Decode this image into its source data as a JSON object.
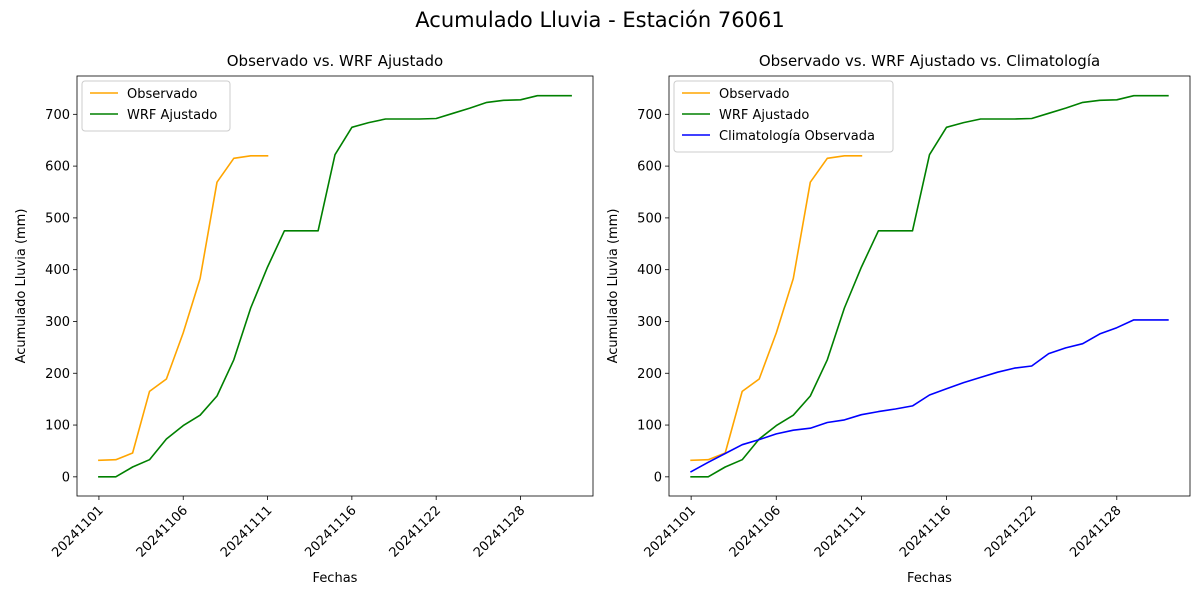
{
  "figure": {
    "title": "Acumulado Lluvia - Estación 76061"
  },
  "chart_data": [
    {
      "type": "line",
      "title": "Observado vs. WRF Ajustado",
      "xlabel": "Fechas",
      "ylabel": "Acumulado Lluvia (mm)",
      "x_ticks": [
        "20241101",
        "20241106",
        "20241111",
        "20241116",
        "20241122",
        "20241128"
      ],
      "x_tick_days": [
        1,
        6,
        11,
        16,
        21,
        26
      ],
      "y_ticks": [
        0,
        100,
        200,
        300,
        400,
        500,
        600,
        700
      ],
      "ylim": [
        -37,
        774
      ],
      "xlim_days": [
        -0.3,
        30.3
      ],
      "legend_position": "upper-left",
      "grid": false,
      "series": [
        {
          "name": "Observado",
          "color": "#ffa500",
          "x_days": [
            1,
            2,
            3,
            4,
            5,
            6,
            7,
            8,
            9,
            10,
            11
          ],
          "values": [
            32,
            33,
            46,
            165,
            189,
            278,
            383,
            569,
            615,
            620,
            620
          ]
        },
        {
          "name": "WRF Ajustado",
          "color": "#008000",
          "x_days": [
            1,
            2,
            3,
            4,
            5,
            6,
            7,
            8,
            9,
            10,
            11,
            12,
            13,
            14,
            15,
            16,
            17,
            18,
            19,
            20,
            21,
            22,
            23,
            24,
            25,
            26,
            27,
            28,
            29
          ],
          "values": [
            0,
            0,
            19,
            33,
            73,
            99,
            119,
            156,
            226,
            326,
            405,
            475,
            475,
            475,
            622,
            675,
            684,
            691,
            691,
            691,
            692,
            702,
            712,
            723,
            727,
            728,
            736,
            736,
            736
          ]
        }
      ]
    },
    {
      "type": "line",
      "title": "Observado vs. WRF Ajustado vs. Climatología",
      "xlabel": "Fechas",
      "ylabel": "Acumulado Lluvia (mm)",
      "x_ticks": [
        "20241101",
        "20241106",
        "20241111",
        "20241116",
        "20241122",
        "20241128"
      ],
      "x_tick_days": [
        1,
        6,
        11,
        16,
        21,
        26
      ],
      "y_ticks": [
        0,
        100,
        200,
        300,
        400,
        500,
        600,
        700
      ],
      "ylim": [
        -37,
        774
      ],
      "xlim_days": [
        -0.3,
        30.3
      ],
      "legend_position": "upper-left",
      "grid": false,
      "series": [
        {
          "name": "Observado",
          "color": "#ffa500",
          "x_days": [
            1,
            2,
            3,
            4,
            5,
            6,
            7,
            8,
            9,
            10,
            11
          ],
          "values": [
            32,
            33,
            46,
            165,
            189,
            278,
            383,
            569,
            615,
            620,
            620
          ]
        },
        {
          "name": "WRF Ajustado",
          "color": "#008000",
          "x_days": [
            1,
            2,
            3,
            4,
            5,
            6,
            7,
            8,
            9,
            10,
            11,
            12,
            13,
            14,
            15,
            16,
            17,
            18,
            19,
            20,
            21,
            22,
            23,
            24,
            25,
            26,
            27,
            28,
            29
          ],
          "values": [
            0,
            0,
            19,
            33,
            73,
            99,
            119,
            156,
            226,
            326,
            405,
            475,
            475,
            475,
            622,
            675,
            684,
            691,
            691,
            691,
            692,
            702,
            712,
            723,
            727,
            728,
            736,
            736,
            736
          ]
        },
        {
          "name": "Climatología Observada",
          "color": "#0000ff",
          "x_days": [
            1,
            2,
            3,
            4,
            5,
            6,
            7,
            8,
            9,
            10,
            11,
            12,
            13,
            14,
            15,
            16,
            17,
            18,
            19,
            20,
            21,
            22,
            23,
            24,
            25,
            26,
            27,
            28,
            29
          ],
          "values": [
            10,
            28,
            45,
            62,
            72,
            83,
            90,
            94,
            105,
            110,
            120,
            126,
            131,
            137,
            158,
            170,
            182,
            192,
            202,
            210,
            214,
            238,
            249,
            257,
            276,
            288,
            303,
            303,
            303
          ]
        }
      ]
    }
  ]
}
